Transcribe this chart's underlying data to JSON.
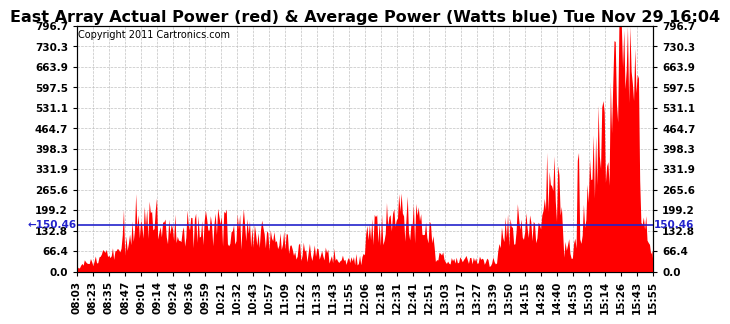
{
  "title": "East Array Actual Power (red) & Average Power (Watts blue) Tue Nov 29 16:04",
  "copyright_text": "Copyright 2011 Cartronics.com",
  "average_power": 150.46,
  "ylim": [
    0.0,
    796.7
  ],
  "yticks": [
    0.0,
    66.4,
    132.8,
    199.2,
    265.6,
    331.9,
    398.3,
    464.7,
    531.1,
    597.5,
    663.9,
    730.3,
    796.7
  ],
  "ytick_labels": [
    "0.0",
    "66.4",
    "132.8",
    "199.2",
    "265.6",
    "331.9",
    "398.3",
    "464.7",
    "531.1",
    "597.5",
    "663.9",
    "730.3",
    "796.7"
  ],
  "xtick_labels": [
    "08:03",
    "08:23",
    "08:35",
    "08:47",
    "09:01",
    "09:14",
    "09:24",
    "09:36",
    "09:59",
    "10:21",
    "10:32",
    "10:43",
    "10:57",
    "11:09",
    "11:22",
    "11:33",
    "11:43",
    "11:55",
    "12:06",
    "12:18",
    "12:31",
    "12:41",
    "12:51",
    "13:03",
    "13:17",
    "13:27",
    "13:39",
    "13:50",
    "14:15",
    "14:28",
    "14:40",
    "14:53",
    "15:03",
    "15:14",
    "15:26",
    "15:43",
    "15:55"
  ],
  "bar_color": "#FF0000",
  "line_color": "#2222CC",
  "grid_color": "#BBBBBB",
  "background_color": "#FFFFFF",
  "title_fontsize": 11.5,
  "tick_fontsize": 7.5,
  "avg_label_fontsize": 7.5,
  "copyright_fontsize": 7
}
